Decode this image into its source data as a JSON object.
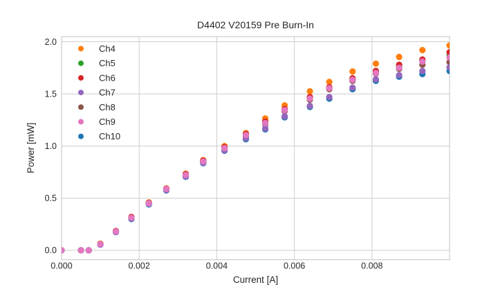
{
  "figure": {
    "background": "#ffffff",
    "text_color": "#262626",
    "grid_color": "#cccccc"
  },
  "chart_data": {
    "type": "scatter",
    "title": "D4402 V20159 Pre Burn-In",
    "xlabel": "Current [A]",
    "ylabel": "Power [mW]",
    "xlim": [
      0.0,
      0.01
    ],
    "ylim": [
      -0.09,
      2.05
    ],
    "xticks": [
      0.0,
      0.002,
      0.004,
      0.006,
      0.008
    ],
    "xtick_labels": [
      "0.000",
      "0.002",
      "0.004",
      "0.006",
      "0.008"
    ],
    "yticks": [
      0.0,
      0.5,
      1.0,
      1.5,
      2.0
    ],
    "ytick_labels": [
      "0.0",
      "0.5",
      "1.0",
      "1.5",
      "2.0"
    ],
    "grid": true,
    "legend_position": "upper left",
    "marker": "circle",
    "x": [
      0.0,
      0.0005,
      0.0007,
      0.001,
      0.0014,
      0.0018,
      0.00225,
      0.0027,
      0.0032,
      0.00365,
      0.0042,
      0.00475,
      0.00525,
      0.00575,
      0.0064,
      0.0069,
      0.0075,
      0.0081,
      0.0087,
      0.0093,
      0.01
    ],
    "series": [
      {
        "name": "Ch4",
        "color": "#ff7f0e",
        "values": [
          0.0,
          0.0,
          0.0,
          0.065,
          0.185,
          0.32,
          0.46,
          0.595,
          0.735,
          0.865,
          1.0,
          1.125,
          1.265,
          1.39,
          1.525,
          1.615,
          1.715,
          1.79,
          1.855,
          1.92,
          1.965
        ]
      },
      {
        "name": "Ch5",
        "color": "#2ca02c",
        "values": [
          0.0,
          0.0,
          0.0,
          0.06,
          0.18,
          0.315,
          0.455,
          0.59,
          0.725,
          0.855,
          0.985,
          1.11,
          1.23,
          1.35,
          1.465,
          1.56,
          1.645,
          1.71,
          1.765,
          1.82,
          1.87
        ]
      },
      {
        "name": "Ch6",
        "color": "#d62728",
        "values": [
          0.0,
          0.0,
          0.0,
          0.06,
          0.185,
          0.32,
          0.455,
          0.59,
          0.73,
          0.86,
          0.99,
          1.115,
          1.235,
          1.355,
          1.47,
          1.565,
          1.65,
          1.72,
          1.78,
          1.83,
          1.9
        ]
      },
      {
        "name": "Ch7",
        "color": "#9467bd",
        "values": [
          0.0,
          0.0,
          0.0,
          0.055,
          0.175,
          0.305,
          0.445,
          0.58,
          0.71,
          0.84,
          0.96,
          1.075,
          1.17,
          1.285,
          1.385,
          1.47,
          1.56,
          1.64,
          1.68,
          1.72,
          1.755
        ]
      },
      {
        "name": "Ch8",
        "color": "#8c564b",
        "values": [
          0.0,
          0.0,
          0.0,
          0.06,
          0.18,
          0.31,
          0.45,
          0.585,
          0.72,
          0.848,
          0.975,
          1.095,
          1.21,
          1.335,
          1.445,
          1.545,
          1.625,
          1.695,
          1.74,
          1.78,
          1.805
        ]
      },
      {
        "name": "Ch9",
        "color": "#e377c2",
        "values": [
          0.0,
          0.0,
          0.0,
          0.06,
          0.18,
          0.313,
          0.452,
          0.588,
          0.723,
          0.852,
          0.98,
          1.105,
          1.22,
          1.345,
          1.455,
          1.555,
          1.635,
          1.7,
          1.75,
          1.81,
          1.85
        ]
      },
      {
        "name": "Ch10",
        "color": "#1f77b4",
        "values": [
          0.0,
          0.0,
          0.0,
          0.055,
          0.175,
          0.3,
          0.44,
          0.575,
          0.705,
          0.835,
          0.955,
          1.065,
          1.16,
          1.275,
          1.375,
          1.455,
          1.545,
          1.625,
          1.665,
          1.69,
          1.72
        ]
      }
    ]
  }
}
